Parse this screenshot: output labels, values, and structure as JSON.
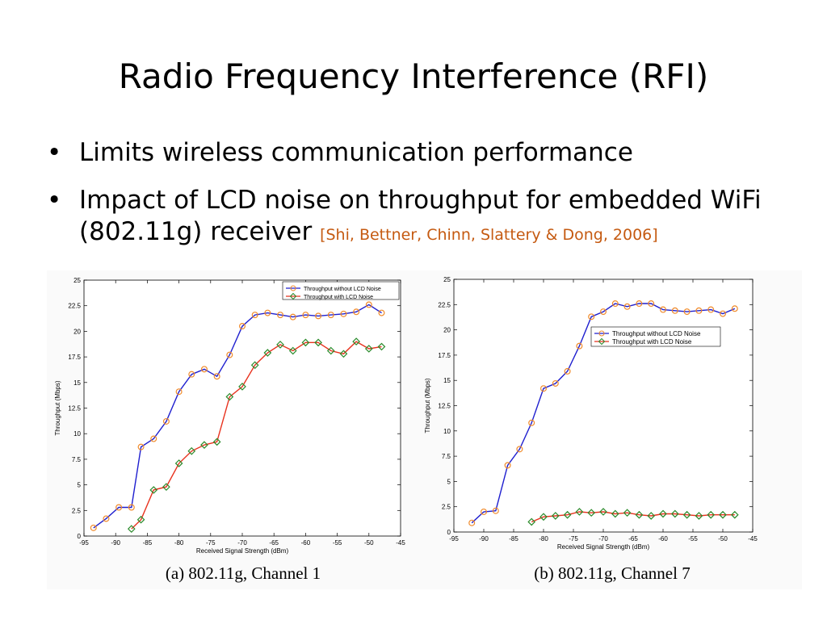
{
  "slide": {
    "title": "Radio Frequency Interference (RFI)",
    "bullets": [
      {
        "text": "Limits wireless communication performance"
      },
      {
        "text": "Impact of LCD noise on throughput for embedded WiFi (802.11g) receiver",
        "citation": "[Shi, Bettner, Chinn, Slattery & Dong, 2006]"
      }
    ],
    "bullet_glyph": "•"
  },
  "colors": {
    "series_without": "#1f1fcf",
    "series_with": "#e8321e",
    "marker_without": "#f08a2a",
    "marker_with": "#2a8a2a",
    "citation": "#c55a11"
  },
  "chart_data": [
    {
      "type": "line",
      "caption": "(a) 802.11g, Channel  1",
      "xlabel": "Received Signal Strength (dBm)",
      "ylabel": "Throughput (Mbps)",
      "xlim": [
        -95,
        -45
      ],
      "ylim": [
        0,
        25
      ],
      "xticks": [
        -95,
        -90,
        -85,
        -80,
        -75,
        -70,
        -65,
        -60,
        -55,
        -50,
        -45
      ],
      "xtick_labels": [
        "-95",
        "-90",
        "-85",
        "-80",
        "-75",
        "-70",
        "-65",
        "-60",
        "-55",
        "-50",
        "-45"
      ],
      "yticks": [
        0,
        2.5,
        5,
        7.5,
        10,
        12.5,
        15,
        17.5,
        20,
        22.5,
        25
      ],
      "ytick_labels": [
        "0",
        "2.5",
        "5",
        "7.5",
        "10",
        "12.5",
        "15",
        "17.5",
        "20",
        "22.5",
        "25"
      ],
      "legend_position": "top-right",
      "grid": false,
      "series": [
        {
          "name": "Throughput without LCD Noise",
          "marker": "circle",
          "x": [
            -93.5,
            -91.5,
            -89.5,
            -87.5,
            -86,
            -84,
            -82,
            -80,
            -78,
            -76,
            -74,
            -72,
            -70,
            -68,
            -66,
            -64,
            -62,
            -60,
            -58,
            -56,
            -54,
            -52,
            -50,
            -48
          ],
          "y": [
            0.8,
            1.7,
            2.8,
            2.8,
            8.7,
            9.5,
            11.2,
            14.1,
            15.8,
            16.3,
            15.6,
            17.7,
            20.5,
            21.6,
            21.8,
            21.6,
            21.4,
            21.6,
            21.5,
            21.6,
            21.7,
            21.9,
            22.6,
            21.8
          ]
        },
        {
          "name": "Throughput with LCD Noise",
          "marker": "diamond",
          "x": [
            -87.5,
            -86,
            -84,
            -82,
            -80,
            -78,
            -76,
            -74,
            -72,
            -70,
            -68,
            -66,
            -64,
            -62,
            -60,
            -58,
            -56,
            -54,
            -52,
            -50,
            -48
          ],
          "y": [
            0.7,
            1.6,
            4.5,
            4.8,
            7.1,
            8.3,
            8.9,
            9.2,
            13.6,
            14.6,
            16.7,
            17.9,
            18.7,
            18.1,
            18.9,
            18.9,
            18.1,
            17.8,
            19.0,
            18.3,
            18.5
          ]
        }
      ]
    },
    {
      "type": "line",
      "caption": "(b) 802.11g, Channel  7",
      "xlabel": "Received Signal Strength (dBm)",
      "ylabel": "Throughput (Mbps)",
      "xlim": [
        -95,
        -45
      ],
      "ylim": [
        0,
        25
      ],
      "xticks": [
        -95,
        -90,
        -85,
        -80,
        -75,
        -70,
        -65,
        -60,
        -55,
        -50,
        -45
      ],
      "xtick_labels": [
        "-95",
        "-90",
        "-85",
        "-80",
        "-75",
        "-70",
        "-65",
        "-60",
        "-55",
        "-50",
        "-45"
      ],
      "yticks": [
        0,
        2.5,
        5,
        7.5,
        10,
        12.5,
        15,
        17.5,
        20,
        22.5,
        25
      ],
      "ytick_labels": [
        "0",
        "2.5",
        "5",
        "7.5",
        "10",
        "12.5",
        "15",
        "17.5",
        "20",
        "22.5",
        "25"
      ],
      "legend_position": "middle-right",
      "grid": false,
      "series": [
        {
          "name": "Throughput without LCD Noise",
          "marker": "circle",
          "x": [
            -92,
            -90,
            -88,
            -86,
            -84,
            -82,
            -80,
            -78,
            -76,
            -74,
            -72,
            -70,
            -68,
            -66,
            -64,
            -62,
            -60,
            -58,
            -56,
            -54,
            -52,
            -50,
            -48
          ],
          "y": [
            0.9,
            2.0,
            2.1,
            6.6,
            8.2,
            10.8,
            14.2,
            14.7,
            15.9,
            18.4,
            21.3,
            21.8,
            22.6,
            22.3,
            22.6,
            22.6,
            22.0,
            21.9,
            21.8,
            21.9,
            22.0,
            21.6,
            22.1
          ]
        },
        {
          "name": "Throughput with LCD Noise",
          "marker": "diamond",
          "x": [
            -82,
            -80,
            -78,
            -76,
            -74,
            -72,
            -70,
            -68,
            -66,
            -64,
            -62,
            -60,
            -58,
            -56,
            -54,
            -52,
            -50,
            -48
          ],
          "y": [
            1.0,
            1.5,
            1.6,
            1.7,
            2.0,
            1.9,
            2.0,
            1.8,
            1.9,
            1.7,
            1.6,
            1.8,
            1.8,
            1.7,
            1.6,
            1.7,
            1.7,
            1.7
          ]
        }
      ]
    }
  ]
}
